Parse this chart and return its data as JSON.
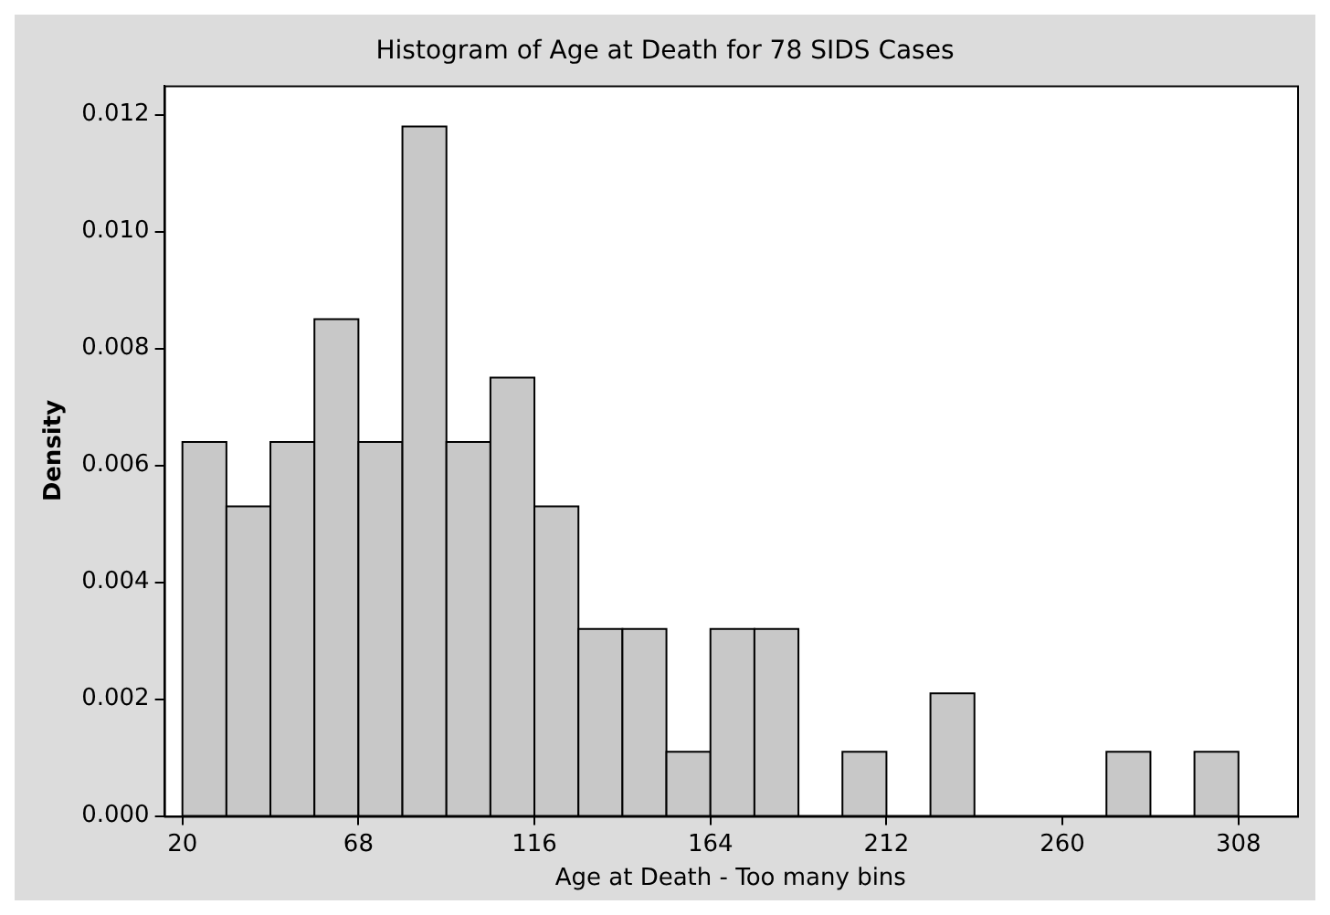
{
  "chart_data": {
    "type": "histogram",
    "title": "Histogram of Age at Death for 78 SIDS Cases",
    "xlabel": "Age at Death - Too many bins",
    "ylabel": "Density",
    "bins": [
      20,
      32,
      44,
      56,
      68,
      80,
      92,
      104,
      116,
      128,
      140,
      152,
      164,
      176,
      188,
      200,
      212,
      224,
      236,
      248,
      260,
      272,
      284,
      296,
      308
    ],
    "values": [
      0.0064,
      0.0053,
      0.0064,
      0.0085,
      0.0064,
      0.0118,
      0.0064,
      0.0075,
      0.0053,
      0.0032,
      0.0032,
      0.0011,
      0.0032,
      0.0032,
      0,
      0.0011,
      0,
      0.0021,
      0,
      0,
      0,
      0.0011,
      0,
      0.0011
    ],
    "color": "#c8c8c8",
    "xlim": [
      15,
      324
    ],
    "xticks": [
      20,
      68,
      116,
      164,
      212,
      260,
      308
    ],
    "ylim": [
      0,
      0.0125
    ],
    "yticks": [
      {
        "value": 0,
        "label": "0.000"
      },
      {
        "value": 0.002,
        "label": "0.002"
      },
      {
        "value": 0.004,
        "label": "0.004"
      },
      {
        "value": 0.006,
        "label": "0.006"
      },
      {
        "value": 0.008,
        "label": "0.008"
      },
      {
        "value": 0.01,
        "label": "0.010"
      },
      {
        "value": 0.012,
        "label": "0.012"
      }
    ],
    "grid": false,
    "legend": false
  }
}
